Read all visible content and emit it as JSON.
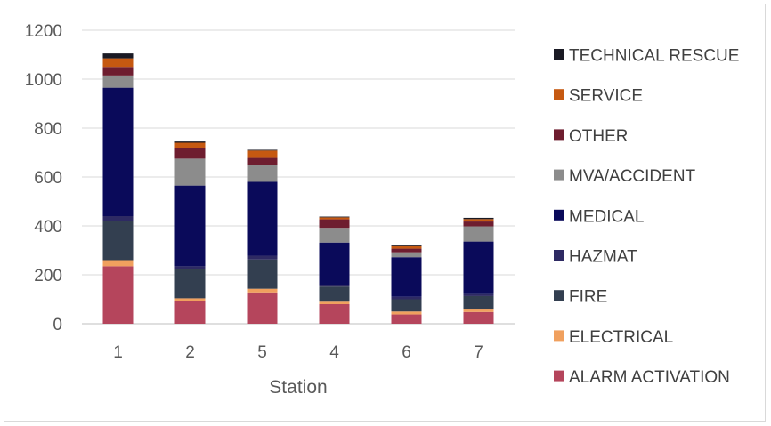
{
  "chart_data": {
    "type": "bar",
    "stacked": true,
    "title": "",
    "xlabel": "Station",
    "ylabel": "",
    "categories": [
      "1",
      "2",
      "5",
      "4",
      "6",
      "7"
    ],
    "ylim": [
      0,
      1200
    ],
    "yticks": [
      0,
      200,
      400,
      600,
      800,
      1000,
      1200
    ],
    "grid": true,
    "legend_position": "right",
    "series": [
      {
        "name": "ALARM ACTIVATION",
        "color": "#b5455c",
        "values": [
          235,
          92,
          128,
          80,
          38,
          48
        ]
      },
      {
        "name": "ELECTRICAL",
        "color": "#f0a05e",
        "values": [
          25,
          12,
          15,
          10,
          12,
          10
        ]
      },
      {
        "name": "FIRE",
        "color": "#333f50",
        "values": [
          160,
          118,
          120,
          62,
          50,
          55
        ]
      },
      {
        "name": "HAZMAT",
        "color": "#2e2a63",
        "values": [
          20,
          13,
          15,
          5,
          10,
          8
        ]
      },
      {
        "name": "MEDICAL",
        "color": "#0a0a5a",
        "values": [
          525,
          330,
          302,
          175,
          162,
          215
        ]
      },
      {
        "name": "MVA/ACCIDENT",
        "color": "#8c8c8c",
        "values": [
          50,
          110,
          68,
          60,
          20,
          62
        ]
      },
      {
        "name": "OTHER",
        "color": "#6e1d2f",
        "values": [
          35,
          45,
          30,
          35,
          15,
          20
        ]
      },
      {
        "name": "SERVICE",
        "color": "#c65911",
        "values": [
          35,
          20,
          30,
          8,
          10,
          10
        ]
      },
      {
        "name": "TECHNICAL RESCUE",
        "color": "#1a1a24",
        "values": [
          20,
          5,
          3,
          3,
          5,
          5
        ]
      }
    ]
  }
}
